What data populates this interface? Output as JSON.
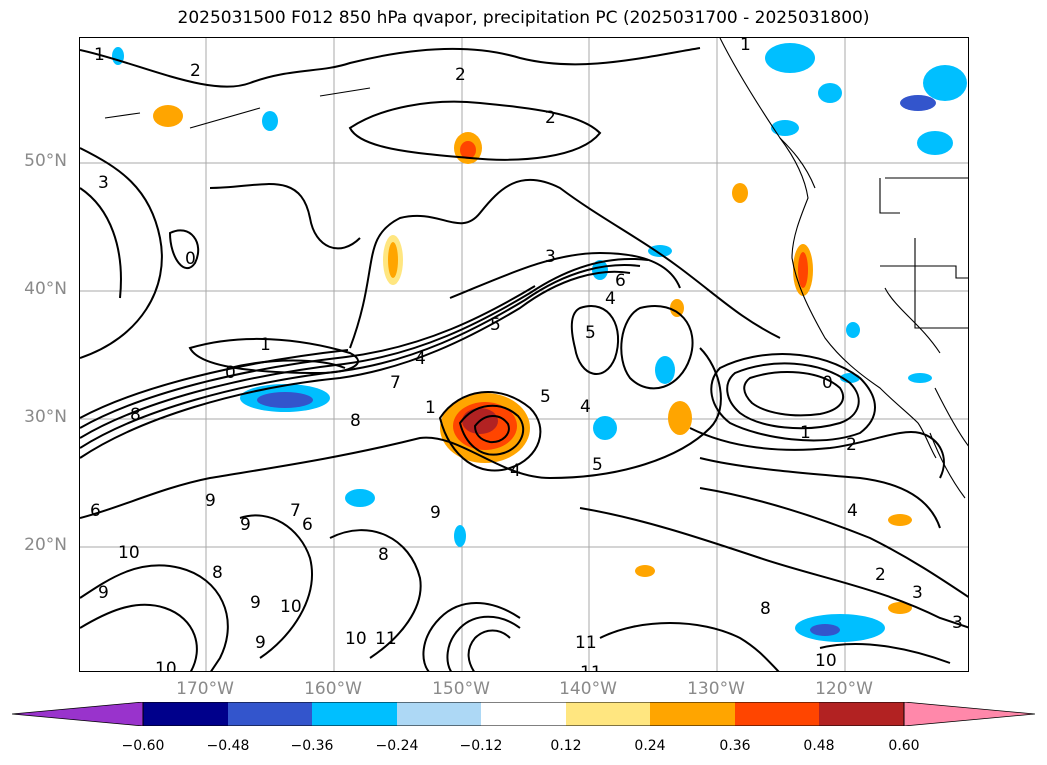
{
  "title": "2025031500 F012 850 hPa qvapor, precipitation PC (2025031700 - 2025031800)",
  "map": {
    "lat_labels": [
      "50°N",
      "40°N",
      "30°N",
      "20°N"
    ],
    "lon_labels": [
      "170°W",
      "160°W",
      "150°W",
      "140°W",
      "130°W",
      "120°W"
    ],
    "contour_labels": [
      "1",
      "1",
      "2",
      "2",
      "2",
      "3",
      "3",
      "0",
      "0",
      "1",
      "4",
      "5",
      "4",
      "5",
      "6",
      "7",
      "8",
      "8",
      "1",
      "4",
      "5",
      "4",
      "5",
      "0",
      "1",
      "2",
      "6",
      "9",
      "10",
      "10",
      "8",
      "9",
      "10",
      "11",
      "9",
      "9",
      "8",
      "7",
      "9",
      "9",
      "6",
      "10",
      "11",
      "4",
      "2",
      "3",
      "3",
      "8",
      "10",
      "11"
    ]
  },
  "colorbar": {
    "tick_labels": [
      "−0.60",
      "−0.48",
      "−0.36",
      "−0.24",
      "−0.12",
      "0.12",
      "0.24",
      "0.36",
      "0.48",
      "0.60"
    ],
    "colors": [
      "#9933cc",
      "#00008b",
      "#3355cc",
      "#00bfff",
      "#add8f5",
      "#ffffff",
      "#ffe680",
      "#ffa500",
      "#ff4500",
      "#b22222",
      "#ff88aa",
      "#ff88aa"
    ]
  }
}
